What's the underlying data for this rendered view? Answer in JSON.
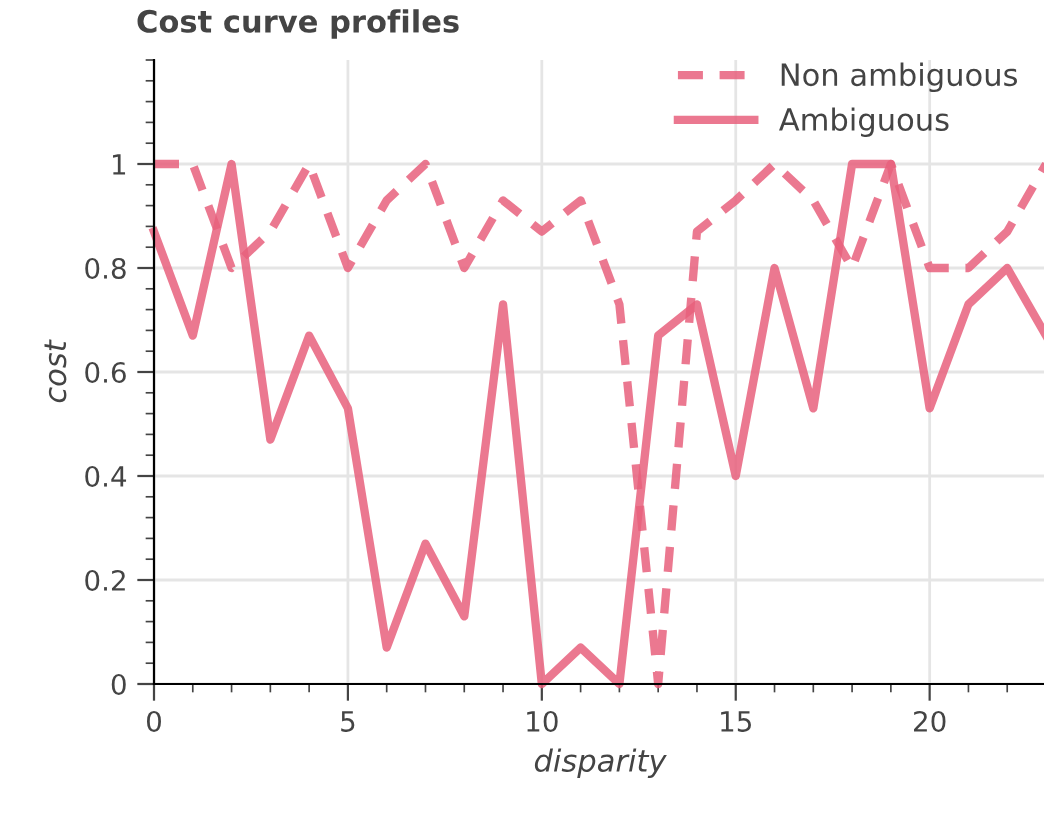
{
  "chart_data": {
    "type": "line",
    "title": "Cost curve profiles",
    "xlabel": "disparity",
    "ylabel": "cost",
    "x": [
      0,
      1,
      2,
      3,
      4,
      5,
      6,
      7,
      8,
      9,
      10,
      11,
      12,
      13,
      14,
      15,
      16,
      17,
      18,
      19,
      20,
      21,
      22,
      23
    ],
    "series": [
      {
        "name": "Non ambiguous",
        "color": "#e8607c",
        "line_style": "dashed",
        "values": [
          1,
          1,
          0.8,
          0.87,
          1,
          0.8,
          0.93,
          1,
          0.8,
          0.93,
          0.87,
          0.93,
          0.73,
          0,
          0.87,
          0.93,
          1,
          0.93,
          0.8,
          1,
          0.8,
          0.8,
          0.87,
          1
        ]
      },
      {
        "name": "Ambiguous",
        "color": "#e8607c",
        "line_style": "solid",
        "values": [
          0.87,
          0.67,
          1,
          0.47,
          0.67,
          0.53,
          0.07,
          0.27,
          0.13,
          0.73,
          0,
          0.07,
          0,
          0.67,
          0.73,
          0.4,
          0.8,
          0.53,
          1,
          1,
          0.53,
          0.73,
          0.8,
          0.67
        ]
      }
    ],
    "xlim": [
      0,
      23
    ],
    "xticks": [
      0,
      5,
      10,
      15,
      20
    ],
    "ylim": [
      0,
      1.2
    ],
    "yticks": [
      0,
      {
        "value": 0.2,
        "label": "0.2"
      },
      {
        "value": 0.4,
        "label": "0.4"
      },
      {
        "value": 0.6,
        "label": "0.6"
      },
      {
        "value": 0.8,
        "label": "0.8"
      },
      1
    ],
    "grid": true,
    "legend": "top right"
  }
}
